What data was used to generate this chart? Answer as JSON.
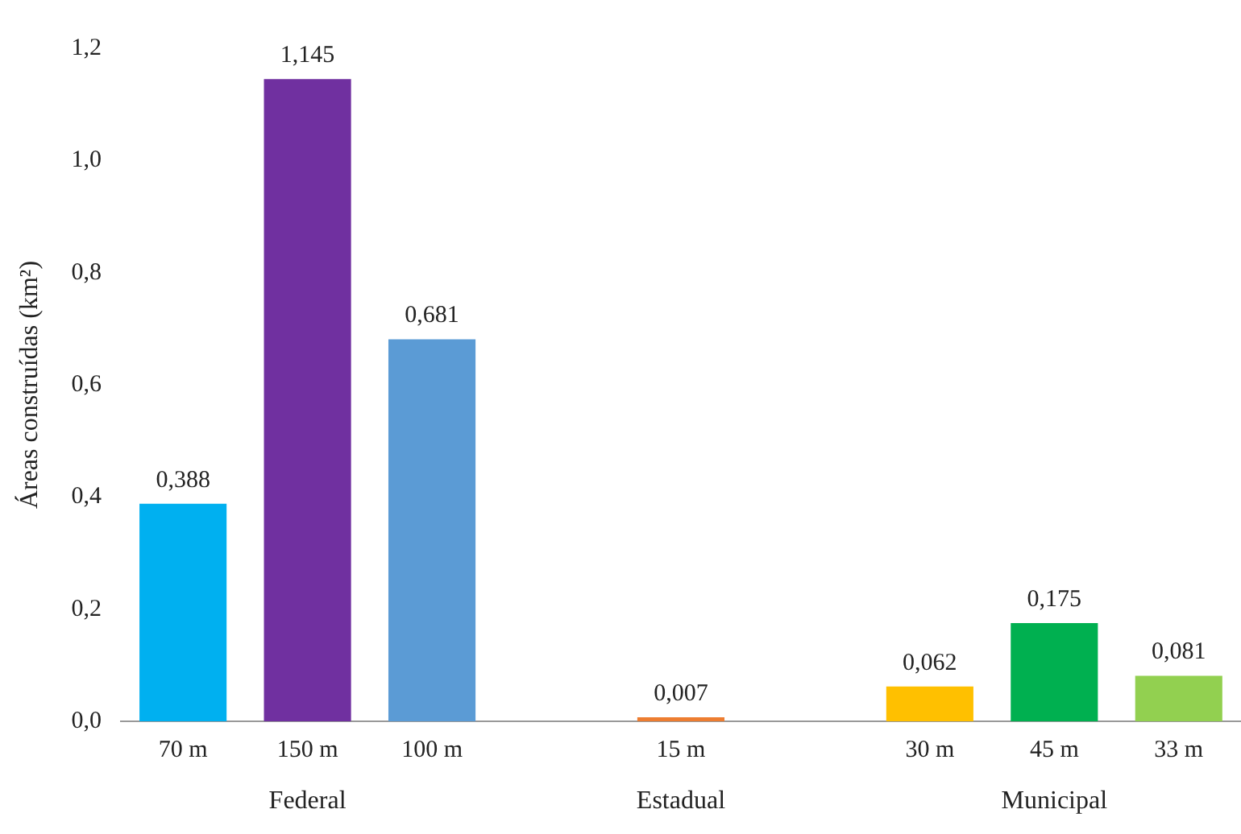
{
  "chart_data": {
    "type": "bar",
    "ylabel": "Áreas construídas (km²)",
    "categories": [
      "70 m",
      "150 m",
      "100 m",
      null,
      "15 m",
      null,
      "30 m",
      "45 m",
      "33 m"
    ],
    "values": [
      0.388,
      1.145,
      0.681,
      null,
      0.007,
      null,
      0.062,
      0.175,
      0.081
    ],
    "colors": [
      "#00b0f0",
      "#7030a0",
      "#5b9bd5",
      "#000000",
      "#ed7d31",
      "#000000",
      "#ffc000",
      "#00b050",
      "#92d050"
    ],
    "value_labels": [
      "0,388",
      "1,145",
      "0,681",
      null,
      "0,007",
      null,
      "0,062",
      "0,175",
      "0,081"
    ],
    "ylim": [
      0,
      1.2
    ],
    "yticks": [
      {
        "value": 0,
        "label": "0,0"
      },
      {
        "value": 0.2,
        "label": "0,2"
      },
      {
        "value": 0.4,
        "label": "0,4"
      },
      {
        "value": 0.6,
        "label": "0,6"
      },
      {
        "value": 0.8,
        "label": "0,8"
      },
      {
        "value": 1,
        "label": "1,0"
      },
      {
        "value": 1.2,
        "label": "1,2"
      }
    ],
    "grid": false,
    "legend": false,
    "annotations": [
      "Federal",
      "Estadual",
      "Municipal"
    ]
  }
}
